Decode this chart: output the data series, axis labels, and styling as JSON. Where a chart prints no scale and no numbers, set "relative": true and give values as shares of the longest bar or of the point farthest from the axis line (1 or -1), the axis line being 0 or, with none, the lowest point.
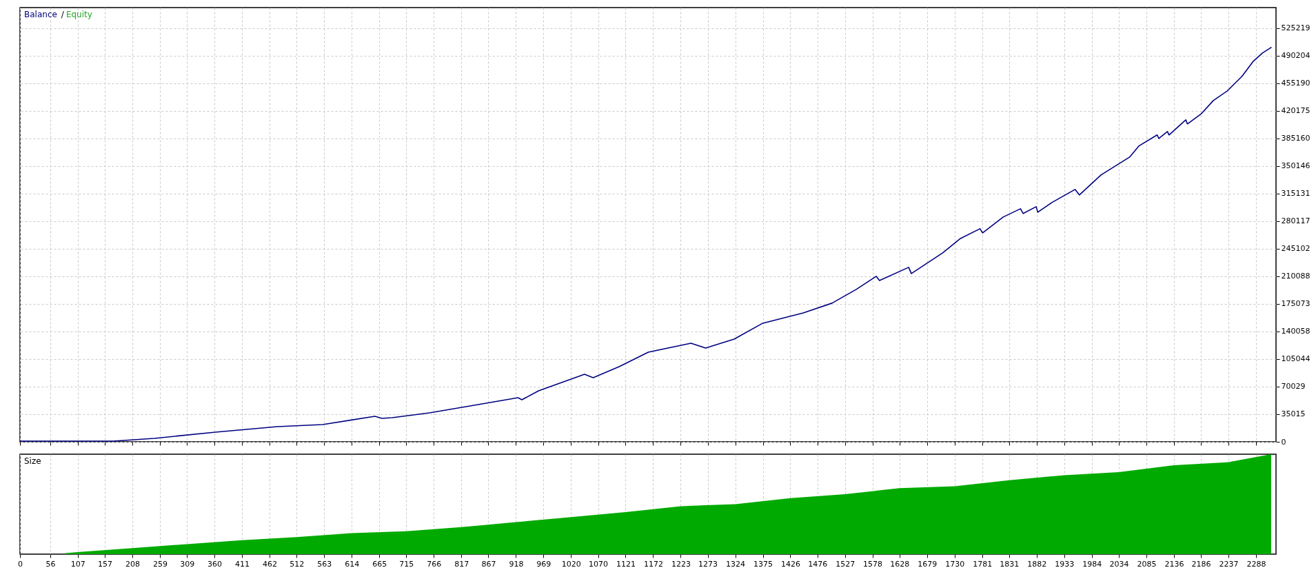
{
  "chart_data": [
    {
      "type": "line",
      "xlim": [
        0,
        2325
      ],
      "ylim": [
        0,
        551300
      ],
      "xticks": [
        0,
        56,
        107,
        157,
        208,
        259,
        309,
        360,
        411,
        462,
        512,
        563,
        614,
        665,
        715,
        766,
        817,
        867,
        918,
        969,
        1020,
        1070,
        1121,
        1172,
        1223,
        1273,
        1324,
        1375,
        1426,
        1476,
        1527,
        1578,
        1628,
        1679,
        1730,
        1781,
        1831,
        1882,
        1933,
        1984,
        2034,
        2085,
        2136,
        2186,
        2237,
        2288
      ],
      "yticks": [
        0,
        35015,
        70029,
        105044,
        140058,
        175073,
        210088,
        245102,
        280117,
        315131,
        350146,
        385160,
        420175,
        455190,
        490204,
        525219
      ],
      "grid": true,
      "legend": "top left",
      "tick_labels": "y",
      "annotations": [
        "/"
      ],
      "series": [
        {
          "name": "Balance",
          "color": "#000080",
          "x": [
            0,
            173,
            249,
            362,
            476,
            560,
            657,
            670,
            689,
            758,
            848,
            922,
            929,
            960,
            1045,
            1061,
            1109,
            1163,
            1242,
            1269,
            1322,
            1375,
            1450,
            1503,
            1548,
            1585,
            1591,
            1645,
            1650,
            1708,
            1741,
            1777,
            1782,
            1820,
            1852,
            1857,
            1881,
            1884,
            1910,
            1953,
            1961,
            2001,
            2054,
            2071,
            2105,
            2108,
            2124,
            2127,
            2158,
            2161,
            2187,
            2209,
            2235,
            2262,
            2283,
            2300,
            2316
          ],
          "values": [
            900,
            900,
            4400,
            12300,
            19300,
            21900,
            32400,
            29800,
            30600,
            36800,
            47300,
            56000,
            53400,
            64800,
            85800,
            81400,
            95400,
            113800,
            125200,
            119100,
            130400,
            150600,
            163700,
            176000,
            193500,
            210100,
            204800,
            221500,
            213600,
            239900,
            258200,
            270500,
            265200,
            285400,
            295900,
            289800,
            298500,
            291500,
            303800,
            320400,
            313400,
            338800,
            361500,
            375500,
            389600,
            385200,
            393900,
            389600,
            408800,
            403600,
            416700,
            433300,
            445600,
            464000,
            483200,
            493700,
            500700
          ]
        },
        {
          "name": "Equity",
          "color": "#22aa22"
        }
      ]
    },
    {
      "type": "area",
      "title": "Size",
      "relative": true,
      "xlim": [
        0,
        2325
      ],
      "xticks": [
        0,
        56,
        107,
        157,
        208,
        259,
        309,
        360,
        411,
        462,
        512,
        563,
        614,
        665,
        715,
        766,
        817,
        867,
        918,
        969,
        1020,
        1070,
        1121,
        1172,
        1223,
        1273,
        1324,
        1375,
        1426,
        1476,
        1527,
        1578,
        1628,
        1679,
        1730,
        1781,
        1831,
        1882,
        1933,
        1984,
        2034,
        2085,
        2136,
        2186,
        2237,
        2288
      ],
      "grid": "x",
      "tick_labels": "x",
      "series": [
        {
          "color": "#00aa00",
          "x": [
            84,
            107,
            208,
            309,
            411,
            512,
            614,
            715,
            817,
            918,
            1020,
            1121,
            1223,
            1324,
            1426,
            1527,
            1628,
            1730,
            1831,
            1933,
            2034,
            2136,
            2237,
            2316
          ],
          "values": [
            0.01,
            0.02,
            0.06,
            0.1,
            0.14,
            0.17,
            0.21,
            0.23,
            0.27,
            0.32,
            0.37,
            0.42,
            0.48,
            0.5,
            0.56,
            0.6,
            0.66,
            0.68,
            0.74,
            0.79,
            0.82,
            0.89,
            0.92,
            1.0
          ]
        }
      ]
    }
  ]
}
